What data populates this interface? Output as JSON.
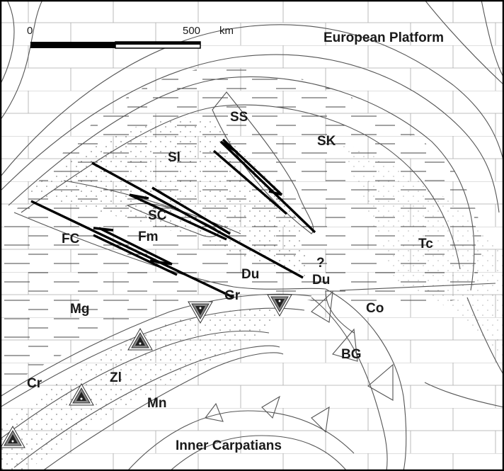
{
  "map": {
    "scale_bar": {
      "start_label": "0",
      "end_label": "500",
      "unit_label": "km"
    },
    "regions": [
      {
        "id": "european-platform",
        "label": "European Platform"
      },
      {
        "id": "inner-carpatians",
        "label": "Inner Carpatians"
      }
    ],
    "units": {
      "ss": "SS",
      "sk": "SK",
      "sl": "Sl",
      "sc": "SC",
      "fc": "FC",
      "fm": "Fm",
      "du": "Du",
      "du_question": "?",
      "du_right": "Du",
      "gr": "Gr",
      "tc": "Tc",
      "mg": "Mg",
      "co": "Co",
      "bg": "BG",
      "cr": "Cr",
      "zl": "Zl",
      "mn": "Mn"
    },
    "colors": {
      "line": "#555555",
      "fault": "#000000",
      "background": "#ffffff"
    }
  }
}
